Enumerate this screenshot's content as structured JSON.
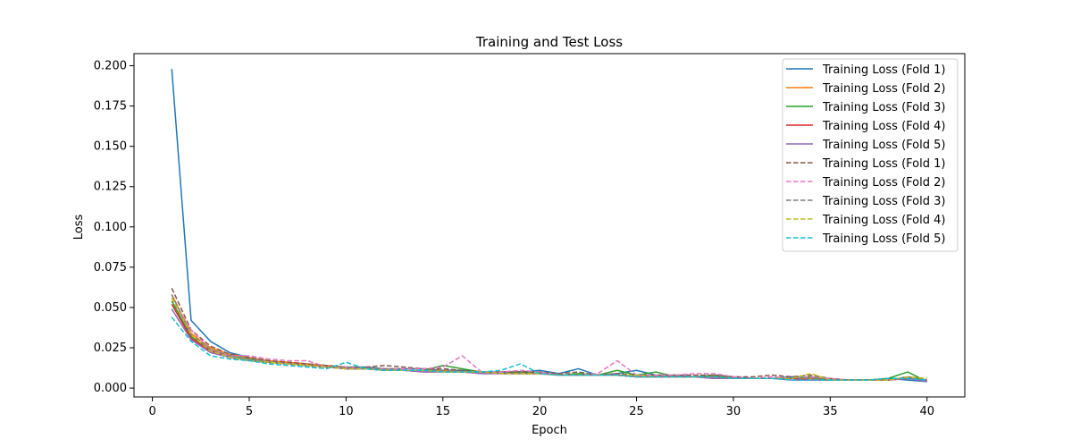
{
  "chart_data": {
    "type": "line",
    "title": "Training and Test Loss",
    "xlabel": "Epoch",
    "ylabel": "Loss",
    "xlim": [
      -0.95,
      41.95
    ],
    "ylim": [
      -0.0055,
      0.2075
    ],
    "xticks": [
      0,
      5,
      10,
      15,
      20,
      25,
      30,
      35,
      40
    ],
    "yticks": [
      0.0,
      0.025,
      0.05,
      0.075,
      0.1,
      0.125,
      0.15,
      0.175,
      0.2
    ],
    "ytick_labels": [
      "0.000",
      "0.025",
      "0.050",
      "0.075",
      "0.100",
      "0.125",
      "0.150",
      "0.175",
      "0.200"
    ],
    "grid": false,
    "legend_position": "top-right",
    "x": [
      1,
      2,
      3,
      4,
      5,
      6,
      7,
      8,
      9,
      10,
      11,
      12,
      13,
      14,
      15,
      16,
      17,
      18,
      19,
      20,
      21,
      22,
      23,
      24,
      25,
      26,
      27,
      28,
      29,
      30,
      31,
      32,
      33,
      34,
      35,
      36,
      37,
      38,
      39,
      40
    ],
    "series": [
      {
        "name": "Training Loss (Fold 1)",
        "color": "#1f77b4",
        "dash": "solid",
        "values": [
          0.198,
          0.042,
          0.029,
          0.022,
          0.019,
          0.017,
          0.016,
          0.015,
          0.014,
          0.013,
          0.013,
          0.012,
          0.012,
          0.012,
          0.011,
          0.011,
          0.01,
          0.01,
          0.01,
          0.011,
          0.009,
          0.012,
          0.008,
          0.009,
          0.011,
          0.008,
          0.008,
          0.007,
          0.008,
          0.007,
          0.006,
          0.006,
          0.007,
          0.006,
          0.005,
          0.005,
          0.005,
          0.006,
          0.005,
          0.004
        ]
      },
      {
        "name": "Training Loss (Fold 2)",
        "color": "#ff7f0e",
        "dash": "solid",
        "values": [
          0.058,
          0.034,
          0.025,
          0.021,
          0.019,
          0.017,
          0.016,
          0.015,
          0.014,
          0.013,
          0.012,
          0.012,
          0.011,
          0.011,
          0.011,
          0.01,
          0.01,
          0.009,
          0.009,
          0.009,
          0.008,
          0.008,
          0.008,
          0.008,
          0.007,
          0.007,
          0.007,
          0.007,
          0.007,
          0.006,
          0.006,
          0.006,
          0.006,
          0.006,
          0.005,
          0.005,
          0.005,
          0.005,
          0.006,
          0.005
        ]
      },
      {
        "name": "Training Loss (Fold 3)",
        "color": "#2ca02c",
        "dash": "solid",
        "values": [
          0.054,
          0.032,
          0.024,
          0.02,
          0.018,
          0.016,
          0.015,
          0.014,
          0.013,
          0.012,
          0.012,
          0.011,
          0.011,
          0.011,
          0.014,
          0.012,
          0.01,
          0.009,
          0.01,
          0.009,
          0.008,
          0.009,
          0.008,
          0.011,
          0.008,
          0.01,
          0.007,
          0.007,
          0.008,
          0.006,
          0.006,
          0.006,
          0.006,
          0.007,
          0.005,
          0.005,
          0.005,
          0.006,
          0.01,
          0.004
        ]
      },
      {
        "name": "Training Loss (Fold 4)",
        "color": "#d62728",
        "dash": "solid",
        "values": [
          0.052,
          0.031,
          0.023,
          0.019,
          0.017,
          0.016,
          0.015,
          0.014,
          0.013,
          0.012,
          0.012,
          0.011,
          0.011,
          0.01,
          0.01,
          0.01,
          0.009,
          0.009,
          0.009,
          0.009,
          0.008,
          0.008,
          0.008,
          0.008,
          0.007,
          0.007,
          0.007,
          0.007,
          0.006,
          0.006,
          0.006,
          0.006,
          0.006,
          0.005,
          0.005,
          0.005,
          0.005,
          0.005,
          0.006,
          0.005
        ]
      },
      {
        "name": "Training Loss (Fold 5)",
        "color": "#9467bd",
        "dash": "solid",
        "values": [
          0.049,
          0.03,
          0.022,
          0.019,
          0.017,
          0.016,
          0.015,
          0.014,
          0.013,
          0.012,
          0.012,
          0.011,
          0.011,
          0.01,
          0.01,
          0.01,
          0.009,
          0.009,
          0.009,
          0.009,
          0.008,
          0.008,
          0.008,
          0.008,
          0.007,
          0.007,
          0.007,
          0.007,
          0.006,
          0.006,
          0.006,
          0.006,
          0.005,
          0.005,
          0.005,
          0.005,
          0.005,
          0.005,
          0.006,
          0.004
        ]
      },
      {
        "name": "Training Loss (Fold 1)",
        "color": "#8c564b",
        "dash": "dashed",
        "values": [
          0.062,
          0.036,
          0.026,
          0.021,
          0.019,
          0.017,
          0.016,
          0.015,
          0.014,
          0.013,
          0.013,
          0.014,
          0.013,
          0.012,
          0.012,
          0.011,
          0.01,
          0.01,
          0.01,
          0.01,
          0.009,
          0.01,
          0.008,
          0.009,
          0.008,
          0.008,
          0.008,
          0.008,
          0.008,
          0.007,
          0.007,
          0.008,
          0.007,
          0.008,
          0.006,
          0.005,
          0.005,
          0.005,
          0.007,
          0.005
        ]
      },
      {
        "name": "Training Loss (Fold 2)",
        "color": "#e377c2",
        "dash": "dashed",
        "values": [
          0.056,
          0.036,
          0.024,
          0.02,
          0.02,
          0.018,
          0.017,
          0.017,
          0.013,
          0.013,
          0.012,
          0.012,
          0.012,
          0.012,
          0.013,
          0.02,
          0.01,
          0.01,
          0.011,
          0.01,
          0.008,
          0.008,
          0.009,
          0.017,
          0.008,
          0.008,
          0.008,
          0.009,
          0.009,
          0.007,
          0.006,
          0.007,
          0.006,
          0.007,
          0.006,
          0.005,
          0.005,
          0.005,
          0.006,
          0.005
        ]
      },
      {
        "name": "Training Loss (Fold 3)",
        "color": "#7f7f7f",
        "dash": "dashed",
        "values": [
          0.058,
          0.033,
          0.024,
          0.02,
          0.018,
          0.016,
          0.015,
          0.014,
          0.013,
          0.013,
          0.012,
          0.012,
          0.011,
          0.011,
          0.011,
          0.01,
          0.01,
          0.009,
          0.009,
          0.009,
          0.008,
          0.008,
          0.008,
          0.008,
          0.007,
          0.007,
          0.007,
          0.007,
          0.007,
          0.006,
          0.006,
          0.006,
          0.006,
          0.006,
          0.005,
          0.005,
          0.005,
          0.005,
          0.006,
          0.005
        ]
      },
      {
        "name": "Training Loss (Fold 4)",
        "color": "#bcbd22",
        "dash": "dashed",
        "values": [
          0.056,
          0.033,
          0.023,
          0.019,
          0.017,
          0.016,
          0.015,
          0.014,
          0.013,
          0.012,
          0.012,
          0.011,
          0.011,
          0.011,
          0.01,
          0.01,
          0.01,
          0.009,
          0.009,
          0.009,
          0.008,
          0.008,
          0.008,
          0.008,
          0.008,
          0.007,
          0.007,
          0.007,
          0.007,
          0.006,
          0.006,
          0.006,
          0.006,
          0.009,
          0.005,
          0.005,
          0.005,
          0.005,
          0.007,
          0.006
        ]
      },
      {
        "name": "Training Loss (Fold 5)",
        "color": "#17becf",
        "dash": "dashed",
        "values": [
          0.044,
          0.029,
          0.02,
          0.018,
          0.017,
          0.015,
          0.014,
          0.013,
          0.012,
          0.016,
          0.012,
          0.011,
          0.011,
          0.011,
          0.01,
          0.01,
          0.01,
          0.011,
          0.015,
          0.009,
          0.008,
          0.008,
          0.008,
          0.008,
          0.007,
          0.007,
          0.007,
          0.007,
          0.007,
          0.006,
          0.006,
          0.006,
          0.005,
          0.005,
          0.005,
          0.005,
          0.005,
          0.006,
          0.006,
          0.005
        ]
      }
    ]
  }
}
